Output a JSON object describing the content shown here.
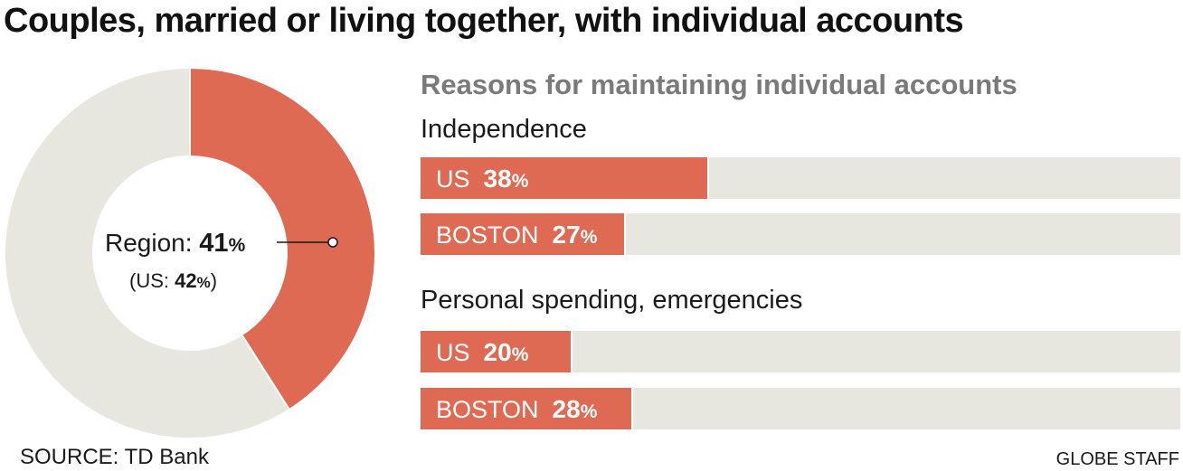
{
  "title": "Couples, married or living together, with individual accounts",
  "source": "SOURCE: TD Bank",
  "credit": "GLOBE STAFF",
  "colors": {
    "accent": "#de6a53",
    "track": "#e7e6df",
    "donut_rest": "#e7e6df"
  },
  "chart_data": [
    {
      "type": "pie",
      "variant": "donut",
      "slices": [
        {
          "label": "Region",
          "value": 41,
          "color": "#de6a53"
        },
        {
          "label": "",
          "value": 59,
          "color": "#e7e6df"
        }
      ],
      "callout": {
        "label": "Region:",
        "value": "41",
        "unit": "%",
        "sub_prefix": "(US: ",
        "sub_value": "42",
        "sub_unit": "%",
        "sub_suffix": ")"
      }
    },
    {
      "type": "bar",
      "orientation": "horizontal",
      "title": "Reasons for maintaining individual accounts",
      "xlim": [
        0,
        100
      ],
      "unit": "%",
      "groups": [
        {
          "label": "Independence",
          "bars": [
            {
              "label": "US",
              "value": 38
            },
            {
              "label": "BOSTON",
              "value": 27
            }
          ]
        },
        {
          "label": "Personal spending, emergencies",
          "bars": [
            {
              "label": "US",
              "value": 20
            },
            {
              "label": "BOSTON",
              "value": 28
            }
          ]
        }
      ]
    }
  ]
}
